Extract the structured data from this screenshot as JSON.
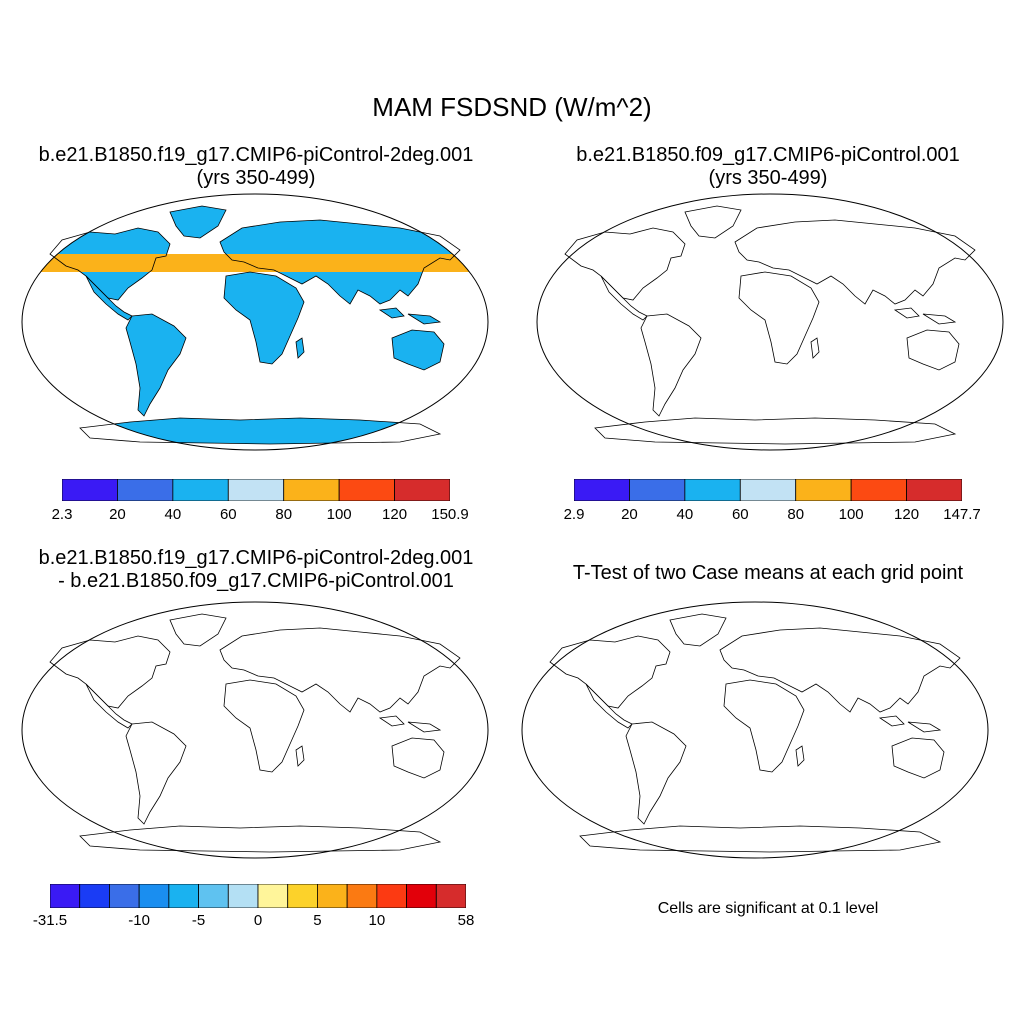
{
  "figure_title": "MAM FSDSND (W/m^2)",
  "panels": [
    {
      "title_line1": "b.e21.B1850.f19_g17.CMIP6-piControl-2deg.001",
      "title_line2": "(yrs 350-499)",
      "colorbar": {
        "labels": [
          "2.3",
          "20",
          "40",
          "60",
          "80",
          "100",
          "120",
          "150.9"
        ],
        "colors": [
          "#3a1af5",
          "#3a6ee8",
          "#1ab2f0",
          "#c2e2f4",
          "#fbb21a",
          "#fc4a12",
          "#d62c2c"
        ]
      }
    },
    {
      "title_line1": "b.e21.B1850.f09_g17.CMIP6-piControl.001",
      "title_line2": "(yrs 350-499)",
      "colorbar": {
        "labels": [
          "2.9",
          "20",
          "40",
          "60",
          "80",
          "100",
          "120",
          "147.7"
        ],
        "colors": [
          "#3a1af5",
          "#3a6ee8",
          "#1ab2f0",
          "#c2e2f4",
          "#fbb21a",
          "#fc4a12",
          "#d62c2c"
        ]
      }
    },
    {
      "title_line1": "b.e21.B1850.f19_g17.CMIP6-piControl-2deg.001",
      "title_line2": "- b.e21.B1850.f09_g17.CMIP6-piControl.001",
      "colorbar": {
        "labels": [
          "-31.5",
          "-10",
          "-5",
          "0",
          "5",
          "10",
          "58"
        ],
        "colors": [
          "#3a1af5",
          "#1a3cf5",
          "#3a6ee8",
          "#1a8ef0",
          "#1ab2f0",
          "#5fc2f0",
          "#b4e0f4",
          "#fff59a",
          "#fcd22a",
          "#fbb21a",
          "#fb7a12",
          "#fc3a12",
          "#e2000a",
          "#d62c2c"
        ]
      }
    },
    {
      "title_line1": "T-Test of two Case means at each grid point",
      "note": "Cells are significant at 0.1 level",
      "significance_color": "#ee0000"
    }
  ]
}
